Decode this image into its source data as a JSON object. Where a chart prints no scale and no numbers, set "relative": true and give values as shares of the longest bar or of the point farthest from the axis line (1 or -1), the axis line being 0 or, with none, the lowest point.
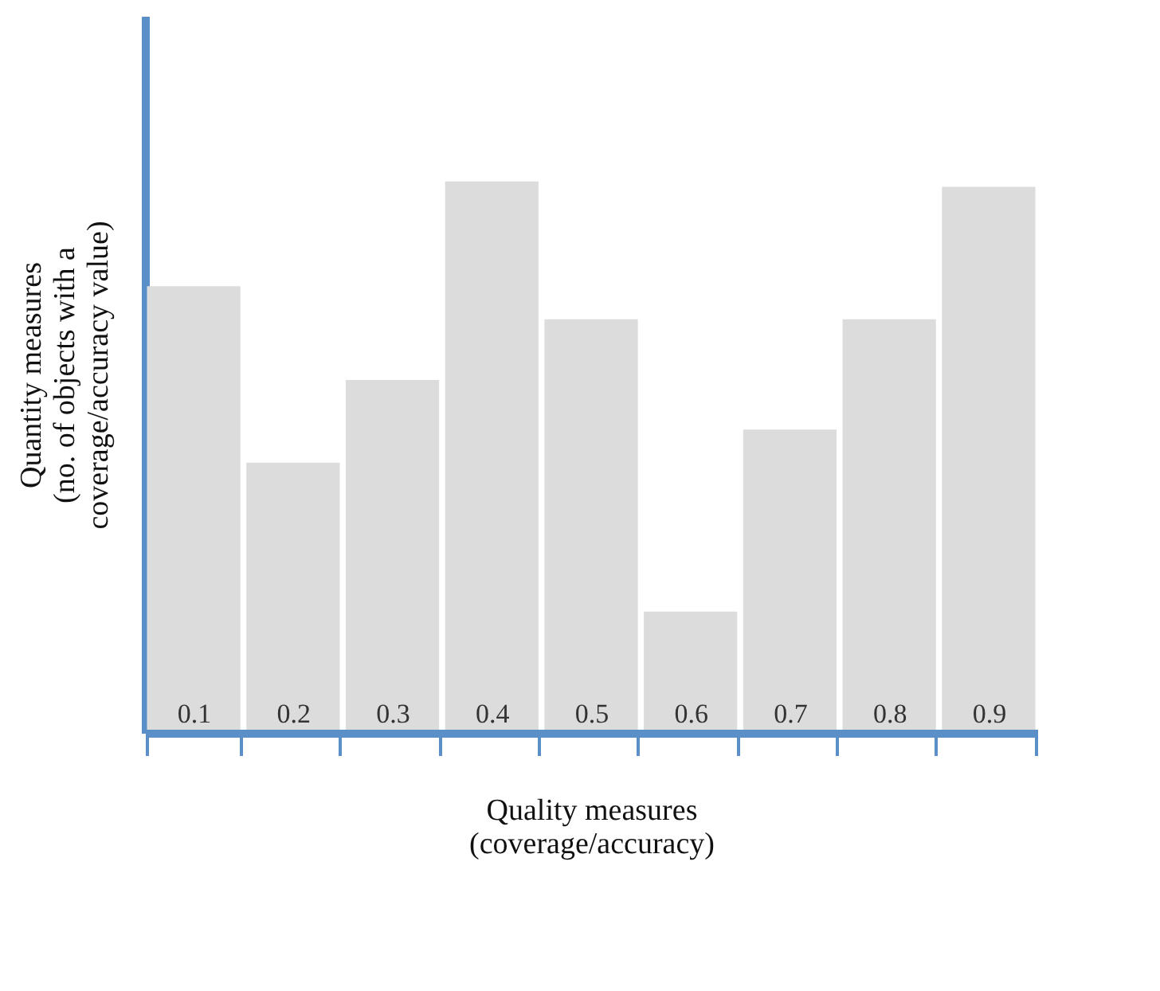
{
  "chart_data": {
    "type": "bar",
    "relative": true,
    "categories": [
      "0.1",
      "0.2",
      "0.3",
      "0.4",
      "0.5",
      "0.6",
      "0.7",
      "0.8",
      "0.9"
    ],
    "values": [
      0.81,
      0.49,
      0.64,
      1.0,
      0.75,
      0.22,
      0.55,
      0.75,
      0.99
    ],
    "color": "#dcdcdc",
    "xlabel": "Quality measures\n(coverage/accuracy)",
    "ylabel": "Quantity measures\n(no. of objects with a\ncoverage/accuracy value)",
    "grid": false
  }
}
